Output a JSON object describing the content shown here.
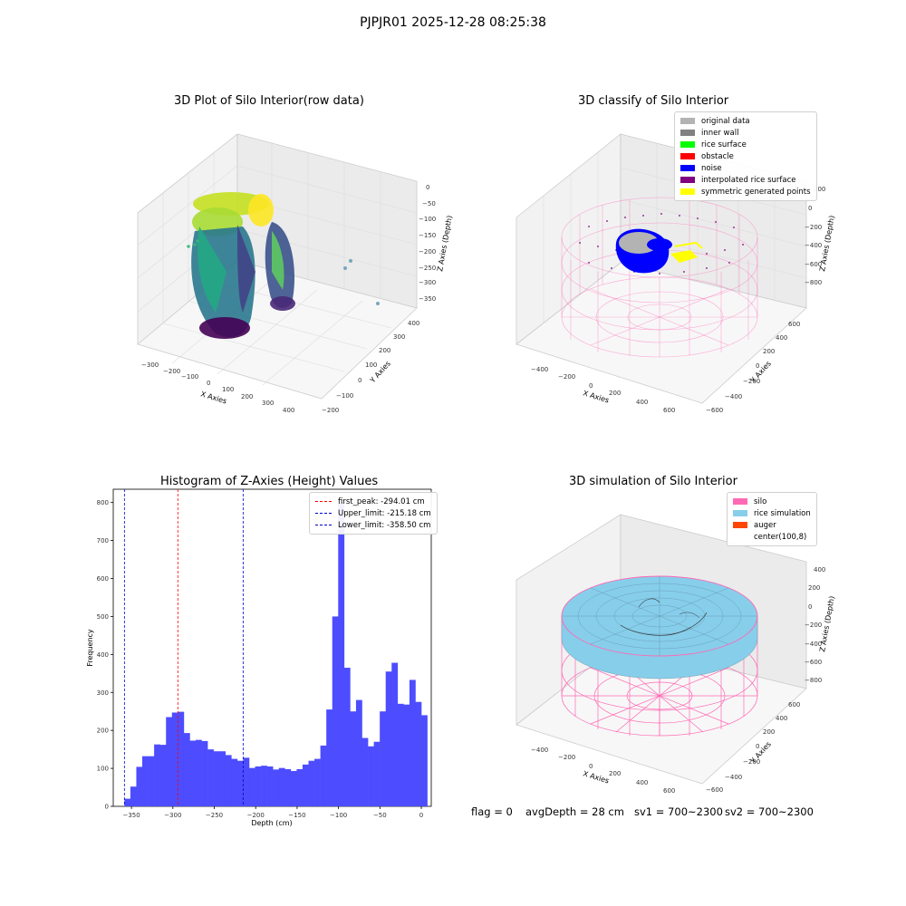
{
  "suptitle": "PJPJR01 2025-12-28 08:25:38",
  "status": {
    "flag": "flag = 0",
    "avg_depth": "avgDepth = 28 cm",
    "sv1": "sv1 = 700~2300",
    "sv2": "sv2 = 700~2300"
  },
  "colors": {
    "silo": "#ff69b4",
    "rice_simulation": "#87ceeb",
    "auger": "#ff4500",
    "histogram_bar": "#4d4dff",
    "first_peak": "#ff0000",
    "limit": "#0000cc"
  },
  "chart_data": [
    {
      "type": "scatter",
      "title": "3D Plot of Silo Interior(row data)",
      "xlabel": "X Axies",
      "ylabel": "Y Axies",
      "zlabel": "Z Axies (Depth)",
      "x_ticks": [
        "−300",
        "−200",
        "−100",
        "0",
        "100",
        "200",
        "300",
        "400"
      ],
      "y_ticks": [
        "−200",
        "−100",
        "0",
        "100",
        "200",
        "300",
        "400"
      ],
      "z_ticks": [
        "0",
        "−50",
        "−100",
        "−150",
        "−200",
        "−250",
        "−300",
        "−350"
      ],
      "zlim": [
        -370,
        10
      ]
    },
    {
      "type": "scatter",
      "title": "3D classify of Silo Interior",
      "xlabel": "X Axies",
      "ylabel": "Y Axies",
      "zlabel": "Z Axies (Depth)",
      "x_ticks": [
        "−400",
        "−200",
        "0",
        "200",
        "400",
        "600"
      ],
      "y_ticks": [
        "−600",
        "−400",
        "−200",
        "0",
        "200",
        "400",
        "600"
      ],
      "z_ticks": [
        "200",
        "0",
        "−200",
        "−400",
        "−600",
        "−800"
      ],
      "legend": [
        {
          "label": "original data",
          "color": "#b3b3b3"
        },
        {
          "label": "inner wall",
          "color": "#808080"
        },
        {
          "label": "rice surface",
          "color": "#00ff00"
        },
        {
          "label": "obstacle",
          "color": "#ff0000"
        },
        {
          "label": "noise",
          "color": "#0000ff"
        },
        {
          "label": "interpolated rice surface",
          "color": "#800080"
        },
        {
          "label": "symmetric generated points",
          "color": "#ffff00"
        }
      ]
    },
    {
      "type": "bar",
      "title": "Histogram of Z-Axies (Height) Values",
      "xlabel": "Depth (cm)",
      "ylabel": "Frequency",
      "xlim": [
        -372,
        12
      ],
      "ylim": [
        0,
        835
      ],
      "x_ticks": [
        -350,
        -300,
        -250,
        -200,
        -150,
        -100,
        -50,
        0
      ],
      "x_tick_labels": [
        "−350",
        "−300",
        "−250",
        "−200",
        "−150",
        "−100",
        "−50",
        "0"
      ],
      "y_ticks": [
        0,
        100,
        200,
        300,
        400,
        500,
        600,
        700,
        800
      ],
      "bin_start": -358.5,
      "bin_width": 7.17,
      "values": [
        20,
        52,
        104,
        132,
        132,
        163,
        162,
        235,
        247,
        249,
        193,
        173,
        175,
        172,
        150,
        145,
        145,
        135,
        125,
        120,
        128,
        101,
        105,
        107,
        105,
        97,
        101,
        98,
        93,
        98,
        110,
        120,
        125,
        160,
        255,
        500,
        800,
        365,
        250,
        280,
        180,
        158,
        170,
        250,
        355,
        378,
        270,
        268,
        333,
        275,
        240
      ],
      "vlines": [
        {
          "label": "first_peak: -294.01 cm",
          "x": -294.01,
          "color": "#ff0000"
        },
        {
          "label": "Upper_limit: -215.18 cm",
          "x": -215.18,
          "color": "#0000cc"
        },
        {
          "label": "Lower_limit: -358.50 cm",
          "x": -358.5,
          "color": "#0000cc"
        }
      ]
    },
    {
      "type": "area",
      "title": "3D simulation of Silo Interior",
      "xlabel": "X Axies",
      "ylabel": "Y Axies",
      "zlabel": "Z Axies (Depth)",
      "x_ticks": [
        "−400",
        "−200",
        "0",
        "200",
        "400",
        "600"
      ],
      "y_ticks": [
        "−600",
        "−400",
        "−200",
        "0",
        "200",
        "400",
        "600"
      ],
      "z_ticks": [
        "400",
        "200",
        "0",
        "−200",
        "−400",
        "−600",
        "−800"
      ],
      "legend": [
        {
          "label": "silo",
          "color": "#ff69b4"
        },
        {
          "label": "rice simulation",
          "color": "#87ceeb"
        },
        {
          "label": "auger",
          "color": "#ff4500"
        },
        {
          "label": "center(100,8)",
          "color": ""
        }
      ]
    }
  ]
}
